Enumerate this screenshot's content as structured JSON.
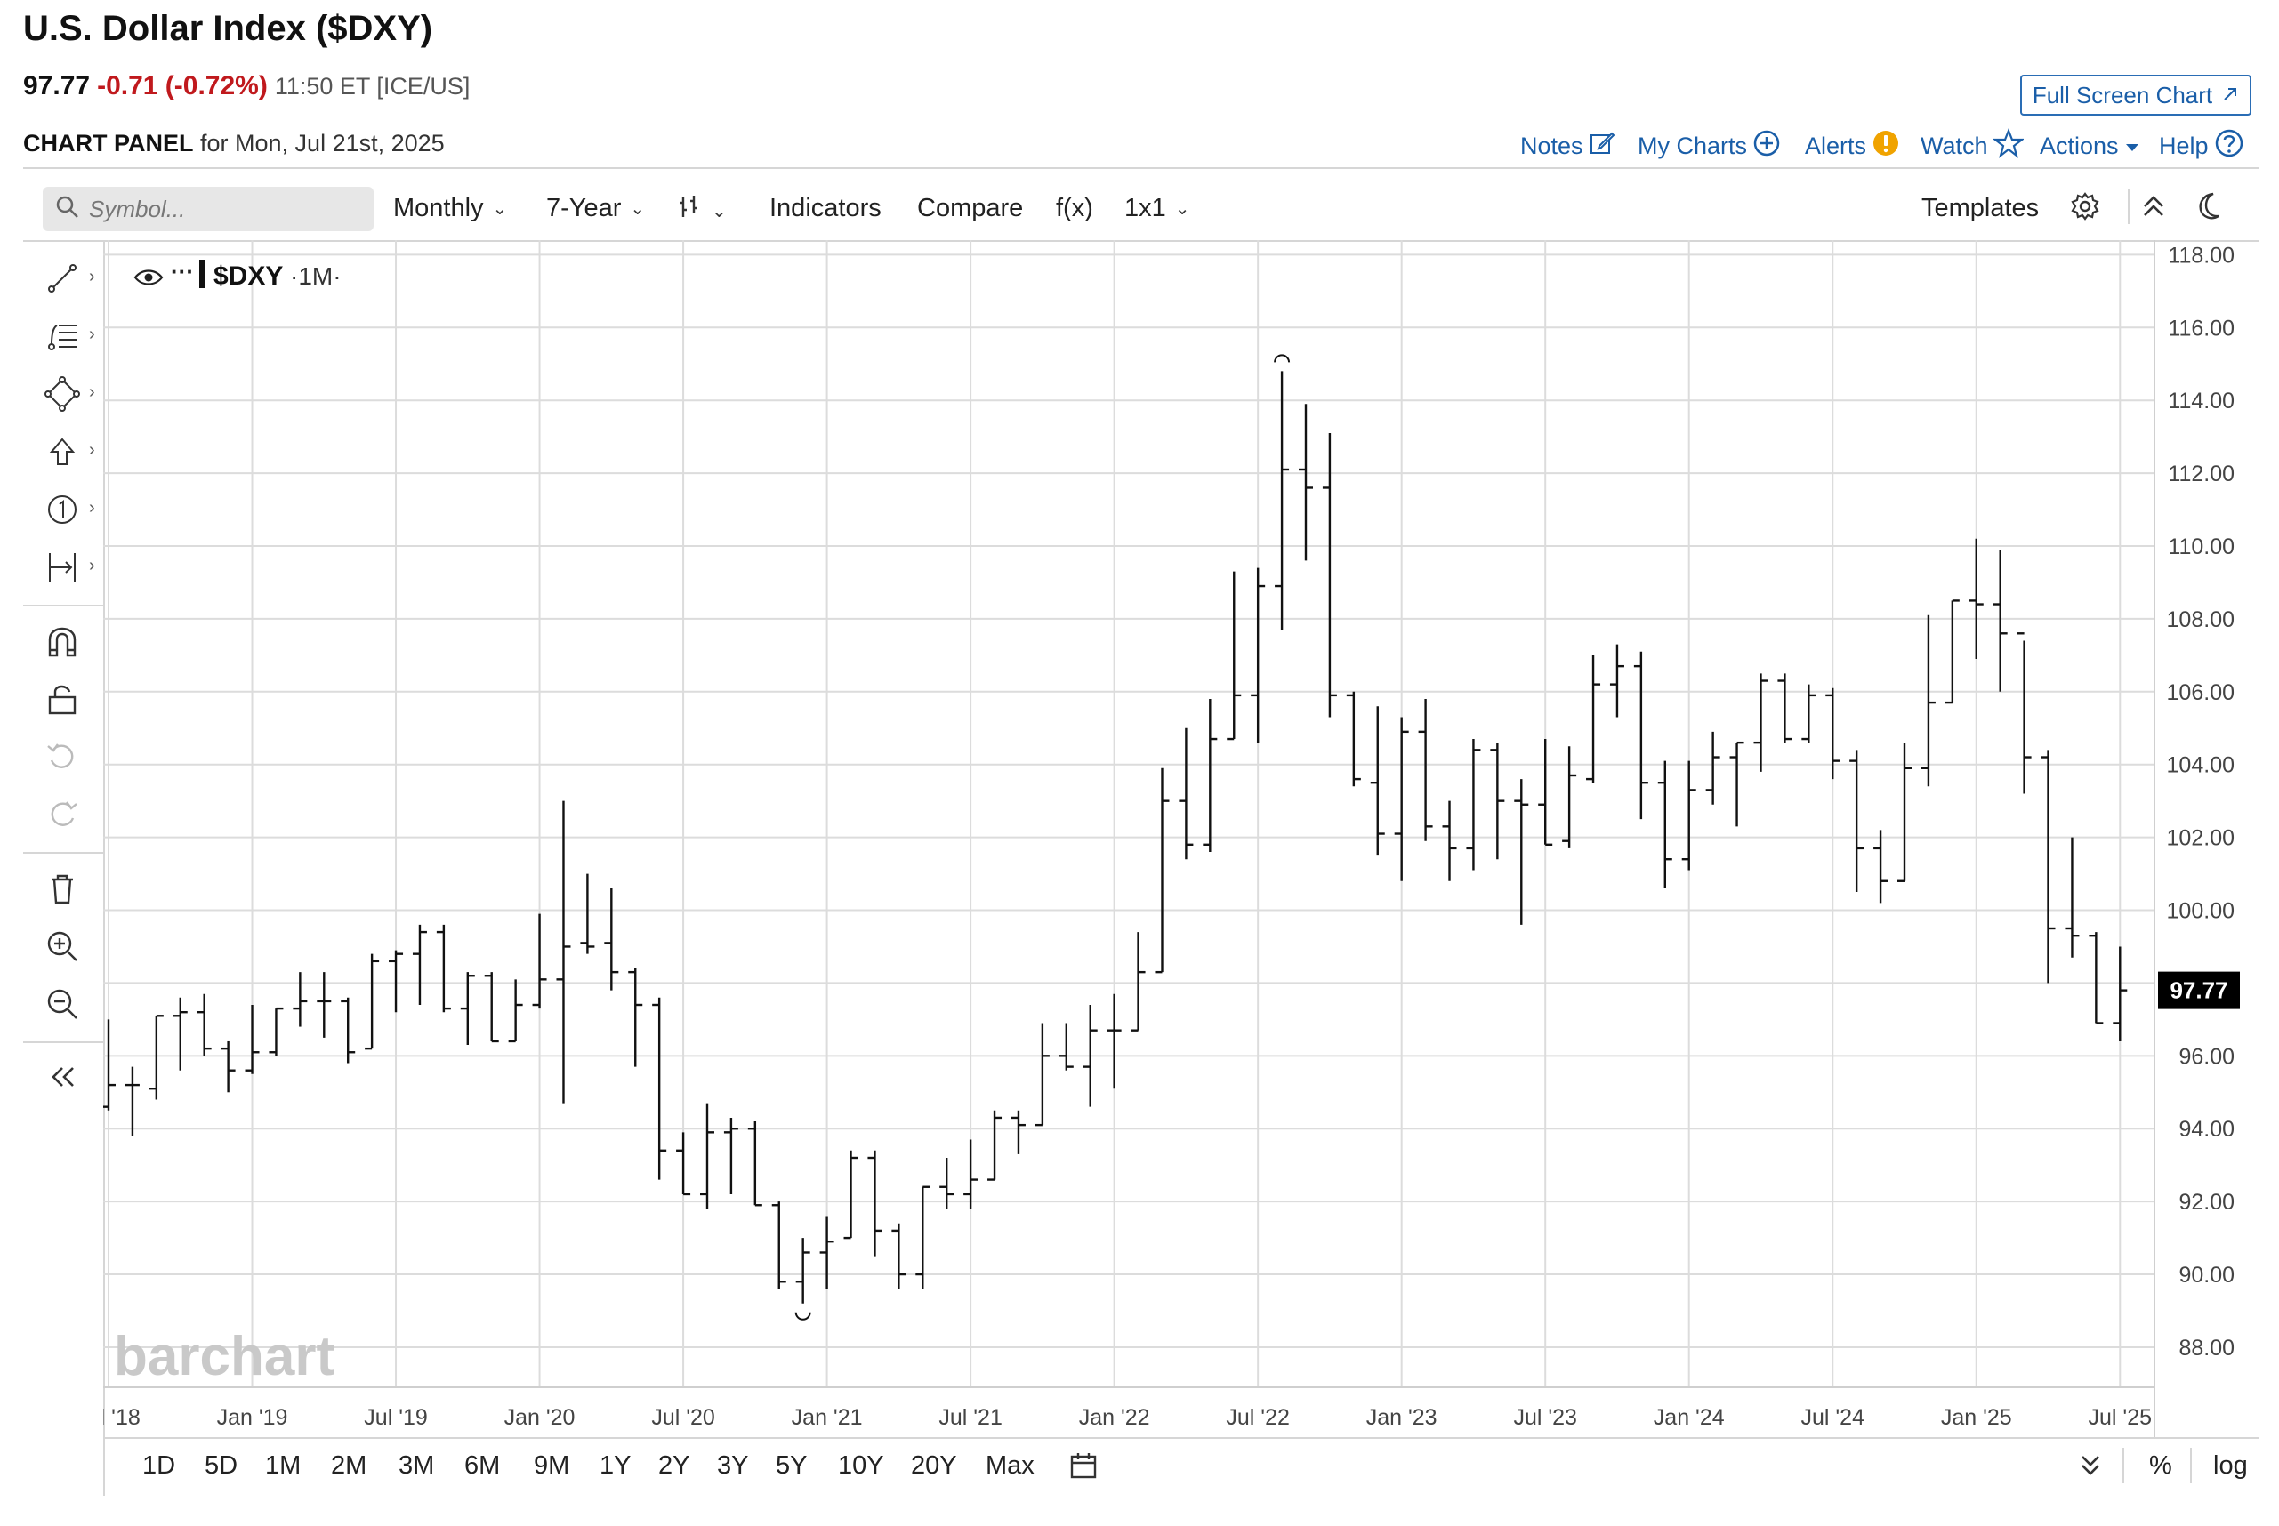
{
  "header": {
    "title": "U.S. Dollar Index ($DXY)",
    "price": "97.77",
    "change": "-0.71 (-0.72%)",
    "time": "11:50 ET [ICE/US]",
    "panel_label": "CHART PANEL",
    "panel_date": "for Mon, Jul 21st, 2025"
  },
  "top_actions": {
    "fullscreen": "Full Screen Chart",
    "notes": "Notes",
    "my_charts": "My Charts",
    "alerts": "Alerts",
    "watch": "Watch",
    "actions": "Actions",
    "help": "Help"
  },
  "toolbar": {
    "search_placeholder": "Symbol...",
    "interval": "Monthly",
    "period": "7-Year",
    "indicators": "Indicators",
    "compare": "Compare",
    "fx": "f(x)",
    "layout": "1x1",
    "templates": "Templates"
  },
  "bottom": {
    "ranges": [
      "1D",
      "5D",
      "1M",
      "2M",
      "3M",
      "6M",
      "9M",
      "1Y",
      "2Y",
      "3Y",
      "5Y",
      "10Y",
      "20Y",
      "Max"
    ],
    "percent": "%",
    "log": "log"
  },
  "chart_data": {
    "type": "ohlc",
    "symbol_label": "$DXY",
    "interval_label": "·1M·",
    "watermark": "barchart",
    "last_price_label": "97.77",
    "ylim": [
      86.9,
      118.4
    ],
    "y_ticks": [
      88,
      90,
      92,
      94,
      96,
      98,
      100,
      102,
      104,
      106,
      108,
      110,
      112,
      114,
      116,
      118
    ],
    "y_tick_labels": [
      "88.00",
      "90.00",
      "92.00",
      "94.00",
      "96.00",
      "",
      "100.00",
      "102.00",
      "104.00",
      "106.00",
      "108.00",
      "110.00",
      "112.00",
      "114.00",
      "116.00",
      "118.00"
    ],
    "x_tick_labels": [
      "Jul '18",
      "Jan '19",
      "Jul '19",
      "Jan '20",
      "Jul '20",
      "Jan '21",
      "Jul '21",
      "Jan '22",
      "Jul '22",
      "Jan '23",
      "Jul '23",
      "Jan '24",
      "Jul '24",
      "Jan '25",
      "Jul '25"
    ],
    "x_tick_month_index": [
      0,
      6,
      12,
      18,
      24,
      30,
      36,
      42,
      48,
      54,
      60,
      66,
      72,
      78,
      84
    ],
    "bars": [
      [
        94.6,
        97.0,
        94.5,
        95.2
      ],
      [
        95.2,
        95.7,
        93.8,
        95.2
      ],
      [
        95.1,
        97.1,
        94.8,
        97.1
      ],
      [
        97.1,
        97.6,
        95.6,
        97.2
      ],
      [
        97.2,
        97.7,
        96.0,
        96.2
      ],
      [
        96.2,
        96.4,
        95.0,
        95.6
      ],
      [
        95.6,
        97.4,
        95.5,
        96.1
      ],
      [
        96.1,
        97.3,
        96.0,
        97.3
      ],
      [
        97.3,
        98.3,
        96.8,
        97.5
      ],
      [
        97.5,
        98.3,
        96.5,
        97.5
      ],
      [
        97.5,
        97.6,
        95.8,
        96.1
      ],
      [
        96.2,
        98.8,
        96.2,
        98.6
      ],
      [
        98.6,
        98.9,
        97.2,
        98.8
      ],
      [
        98.8,
        99.6,
        97.4,
        99.4
      ],
      [
        99.4,
        99.6,
        97.2,
        97.3
      ],
      [
        97.3,
        98.3,
        96.3,
        98.2
      ],
      [
        98.2,
        98.3,
        96.4,
        96.4
      ],
      [
        96.4,
        98.1,
        96.4,
        97.4
      ],
      [
        97.4,
        99.9,
        97.3,
        98.1
      ],
      [
        98.1,
        103.0,
        94.7,
        99.0
      ],
      [
        99.1,
        101.0,
        98.8,
        99.0
      ],
      [
        99.1,
        100.6,
        97.8,
        98.3
      ],
      [
        98.3,
        98.4,
        95.7,
        97.4
      ],
      [
        97.4,
        97.6,
        92.6,
        93.4
      ],
      [
        93.4,
        93.9,
        92.2,
        92.2
      ],
      [
        92.2,
        94.7,
        91.8,
        93.9
      ],
      [
        93.9,
        94.3,
        92.2,
        94.0
      ],
      [
        94.0,
        94.2,
        91.9,
        91.9
      ],
      [
        91.9,
        92.0,
        89.6,
        89.8
      ],
      [
        89.8,
        91.0,
        89.2,
        90.6
      ],
      [
        90.6,
        91.6,
        89.6,
        90.9
      ],
      [
        91.0,
        93.4,
        91.0,
        93.2
      ],
      [
        93.2,
        93.4,
        90.5,
        91.2
      ],
      [
        91.2,
        91.4,
        89.6,
        90.0
      ],
      [
        90.0,
        92.4,
        89.6,
        92.4
      ],
      [
        92.4,
        93.2,
        91.8,
        92.2
      ],
      [
        92.2,
        93.7,
        91.8,
        92.6
      ],
      [
        92.6,
        94.5,
        92.6,
        94.3
      ],
      [
        94.3,
        94.5,
        93.3,
        94.1
      ],
      [
        94.1,
        96.9,
        94.1,
        96.0
      ],
      [
        96.0,
        96.9,
        95.6,
        95.7
      ],
      [
        95.7,
        97.4,
        94.6,
        96.7
      ],
      [
        96.7,
        97.7,
        95.1,
        96.7
      ],
      [
        96.7,
        99.4,
        96.7,
        98.3
      ],
      [
        98.3,
        103.9,
        98.3,
        103.0
      ],
      [
        103.0,
        105.0,
        101.4,
        101.8
      ],
      [
        101.8,
        105.8,
        101.6,
        104.7
      ],
      [
        104.7,
        109.3,
        104.7,
        105.9
      ],
      [
        105.9,
        109.4,
        104.6,
        108.9
      ],
      [
        108.9,
        114.8,
        107.7,
        112.1
      ],
      [
        112.1,
        113.9,
        109.6,
        111.6
      ],
      [
        111.6,
        113.1,
        105.3,
        105.9
      ],
      [
        105.9,
        106.0,
        103.4,
        103.6
      ],
      [
        103.5,
        105.6,
        101.5,
        102.1
      ],
      [
        102.1,
        105.3,
        100.8,
        104.9
      ],
      [
        104.9,
        105.8,
        101.9,
        102.3
      ],
      [
        102.3,
        103.0,
        100.8,
        101.7
      ],
      [
        101.7,
        104.7,
        101.1,
        104.4
      ],
      [
        104.4,
        104.6,
        101.4,
        103.0
      ],
      [
        103.0,
        103.6,
        99.6,
        102.9
      ],
      [
        102.9,
        104.7,
        101.8,
        101.8
      ],
      [
        101.9,
        104.5,
        101.7,
        103.7
      ],
      [
        103.6,
        107.0,
        103.5,
        106.2
      ],
      [
        106.2,
        107.3,
        105.3,
        106.7
      ],
      [
        106.7,
        107.1,
        102.5,
        103.5
      ],
      [
        103.5,
        104.1,
        100.6,
        101.4
      ],
      [
        101.4,
        104.1,
        101.1,
        103.3
      ],
      [
        103.3,
        104.9,
        102.9,
        104.2
      ],
      [
        104.2,
        104.6,
        102.3,
        104.6
      ],
      [
        104.6,
        106.5,
        103.8,
        106.3
      ],
      [
        106.3,
        106.5,
        104.6,
        104.7
      ],
      [
        104.7,
        106.2,
        104.6,
        105.9
      ],
      [
        105.9,
        106.1,
        103.6,
        104.1
      ],
      [
        104.1,
        104.4,
        100.5,
        101.7
      ],
      [
        101.7,
        102.2,
        100.2,
        100.8
      ],
      [
        100.8,
        104.6,
        100.8,
        103.9
      ],
      [
        103.9,
        108.1,
        103.4,
        105.7
      ],
      [
        105.7,
        108.5,
        105.7,
        108.5
      ],
      [
        108.5,
        110.2,
        106.9,
        108.4
      ],
      [
        108.4,
        109.9,
        106.0,
        107.6
      ],
      [
        107.6,
        107.4,
        103.2,
        104.2
      ],
      [
        104.2,
        104.4,
        98.0,
        99.5
      ],
      [
        99.5,
        102.0,
        98.7,
        99.3
      ],
      [
        99.3,
        99.4,
        96.9,
        96.9
      ],
      [
        96.9,
        99.0,
        96.4,
        97.8
      ]
    ]
  }
}
